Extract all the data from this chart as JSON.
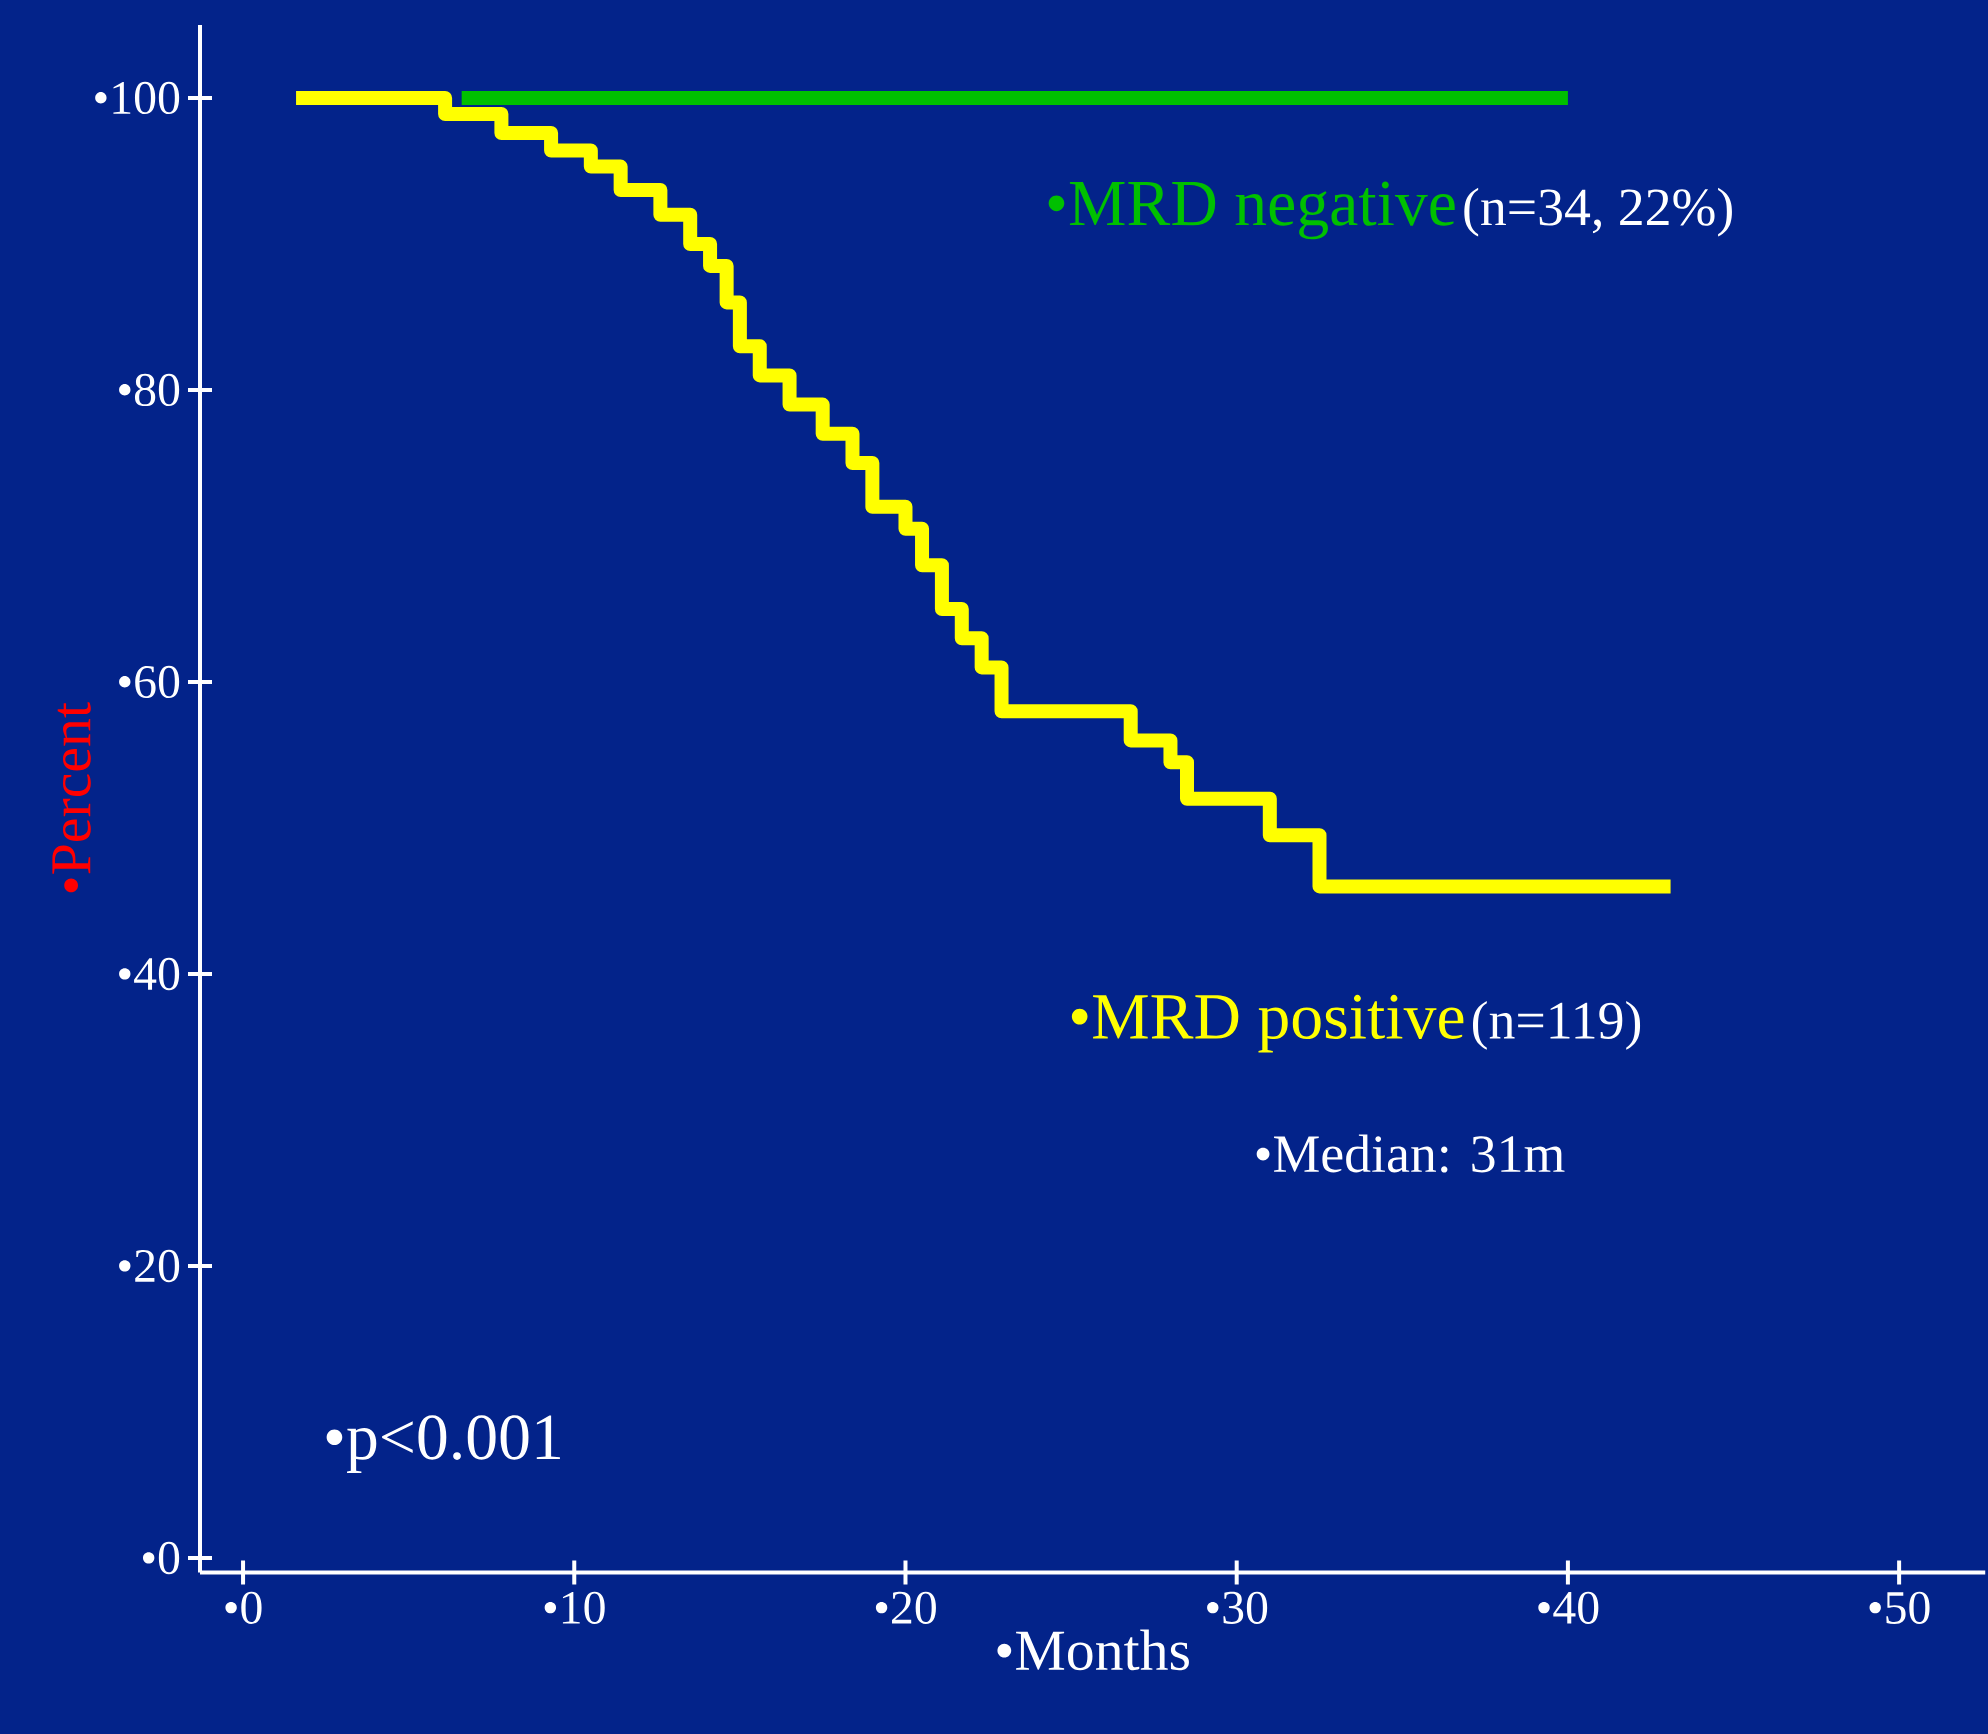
{
  "chart_data": {
    "type": "step",
    "xlabel": "•Months",
    "ylabel": "•Percent",
    "xlim": [
      -1.3,
      52.6
    ],
    "ylim": [
      -1,
      105
    ],
    "xticks": [
      {
        "value": 0,
        "label": "•0"
      },
      {
        "value": 10,
        "label": "•10"
      },
      {
        "value": 20,
        "label": "•20"
      },
      {
        "value": 30,
        "label": "•30"
      },
      {
        "value": 40,
        "label": "•40"
      },
      {
        "value": 50,
        "label": "•50"
      }
    ],
    "yticks": [
      {
        "value": 0,
        "label": "•0"
      },
      {
        "value": 20,
        "label": "•20"
      },
      {
        "value": 40,
        "label": "•40"
      },
      {
        "value": 60,
        "label": "•60"
      },
      {
        "value": 80,
        "label": "•80"
      },
      {
        "value": 100,
        "label": "•100"
      }
    ],
    "grid": false,
    "series": [
      {
        "name": "•MRD negative",
        "color": "#00c000",
        "x": [
          6.6,
          40.0
        ],
        "values": [
          100,
          100
        ]
      },
      {
        "name": "•MRD positive",
        "color": "#ffff00",
        "x": [
          1.6,
          6.1,
          7.8,
          9.3,
          10.5,
          11.4,
          12.6,
          13.5,
          14.1,
          14.6,
          15.0,
          15.6,
          16.5,
          17.5,
          18.4,
          19.0,
          20.0,
          20.5,
          21.1,
          21.7,
          22.3,
          22.9,
          26.8,
          28.0,
          28.5,
          31.0,
          32.5,
          43.1
        ],
        "values": [
          100,
          98.9,
          97.6,
          96.4,
          95.3,
          93.7,
          92,
          90,
          88.5,
          86,
          83,
          81,
          79,
          77,
          75,
          72,
          70.5,
          68,
          65,
          63,
          61,
          58,
          56,
          54.5,
          52,
          49.5,
          46,
          46
        ]
      }
    ],
    "annotations": [
      "(n=34, 22%)",
      "(n=119)",
      "•Median: 31m",
      "•p<0.001"
    ]
  }
}
